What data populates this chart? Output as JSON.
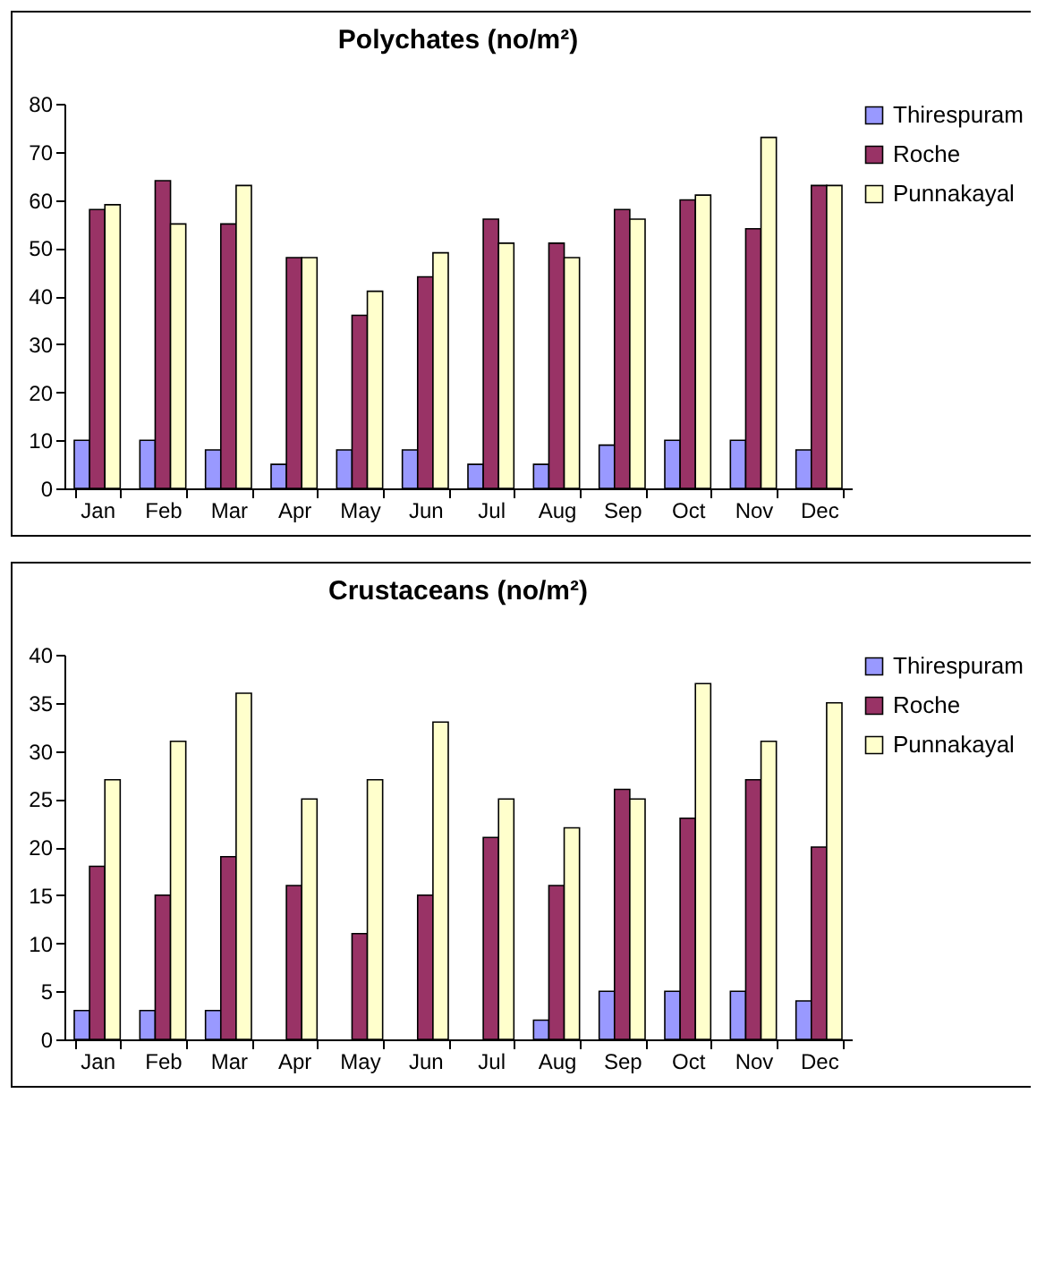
{
  "chart_data": [
    {
      "type": "bar",
      "title": "Polychates (no/m²)",
      "categories": [
        "Jan",
        "Feb",
        "Mar",
        "Apr",
        "May",
        "Jun",
        "Jul",
        "Aug",
        "Sep",
        "Oct",
        "Nov",
        "Dec"
      ],
      "series": [
        {
          "name": "Thirespuram",
          "color": "#9999ff",
          "values": [
            10,
            10,
            8,
            5,
            8,
            8,
            5,
            5,
            9,
            10,
            10,
            8
          ]
        },
        {
          "name": "Roche",
          "color": "#993366",
          "values": [
            58,
            64,
            55,
            48,
            36,
            44,
            56,
            51,
            58,
            60,
            54,
            63
          ]
        },
        {
          "name": "Punnakayal",
          "color": "#ffffcc",
          "values": [
            59,
            55,
            63,
            48,
            41,
            49,
            51,
            48,
            56,
            61,
            73,
            63
          ]
        }
      ],
      "ylim": [
        0,
        80
      ],
      "yticks": [
        0,
        10,
        20,
        30,
        40,
        50,
        60,
        70,
        80
      ],
      "grid": false,
      "legend": "top right"
    },
    {
      "type": "bar",
      "title": "Crustaceans (no/m²)",
      "categories": [
        "Jan",
        "Feb",
        "Mar",
        "Apr",
        "May",
        "Jun",
        "Jul",
        "Aug",
        "Sep",
        "Oct",
        "Nov",
        "Dec"
      ],
      "series": [
        {
          "name": "Thirespuram",
          "color": "#9999ff",
          "values": [
            3,
            3,
            3,
            0,
            0,
            0,
            0,
            2,
            5,
            5,
            5,
            4
          ]
        },
        {
          "name": "Roche",
          "color": "#993366",
          "values": [
            18,
            15,
            19,
            16,
            11,
            15,
            21,
            16,
            26,
            23,
            27,
            20
          ]
        },
        {
          "name": "Punnakayal",
          "color": "#ffffcc",
          "values": [
            27,
            31,
            36,
            25,
            27,
            33,
            25,
            22,
            25,
            37,
            31,
            35
          ]
        }
      ],
      "ylim": [
        0,
        40
      ],
      "yticks": [
        0,
        5,
        10,
        15,
        20,
        25,
        30,
        35,
        40
      ],
      "grid": false,
      "legend": "top right"
    }
  ]
}
